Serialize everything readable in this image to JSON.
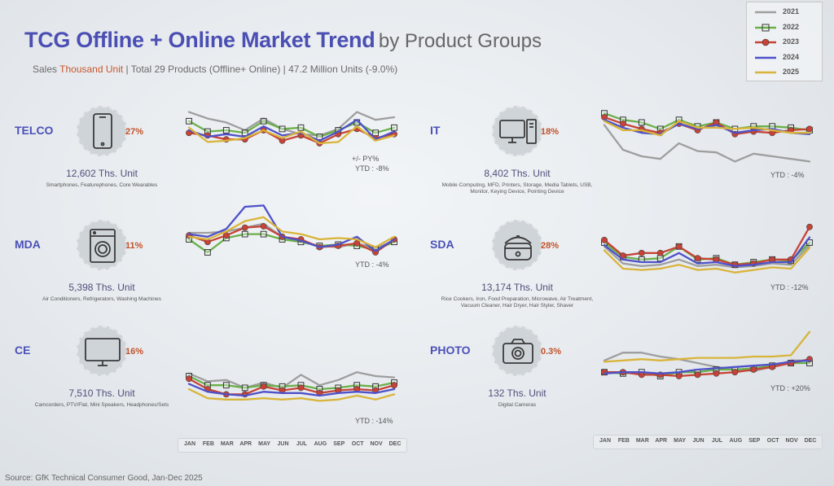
{
  "header": {
    "title_bold": "TCG Offline + Online Market Trend",
    "title_light": "by Product Groups",
    "subtitle_pre": "Sales",
    "subtitle_unit": "Thousand Unit",
    "subtitle_post": "| Total 29 Products (Offline+ Online) |   47.2 Million Units (-9.0%)"
  },
  "legend": [
    {
      "label": "2021",
      "color": "#9e9e9e",
      "marker": "none"
    },
    {
      "label": "2022",
      "color": "#6bb04a",
      "marker": "square"
    },
    {
      "label": "2023",
      "color": "#c84236",
      "marker": "circle"
    },
    {
      "label": "2024",
      "color": "#4e51c9",
      "marker": "none"
    },
    {
      "label": "2025",
      "color": "#d9b43a",
      "marker": "none"
    }
  ],
  "months": [
    "JAN",
    "FEB",
    "MAR",
    "APR",
    "MAY",
    "JUN",
    "JUL",
    "AUG",
    "SEP",
    "OCT",
    "NOV",
    "DEC"
  ],
  "groups": [
    {
      "key": "telco",
      "name": "TELCO",
      "share": "27%",
      "units": "12,602 Ths. Unit",
      "desc": "Smartphones, Featurephones, Core Wearables",
      "icon": "smartphone-icon"
    },
    {
      "key": "mda",
      "name": "MDA",
      "share": "11%",
      "units": "5,398 Ths. Unit",
      "desc": "Air Conditioners, Refrigerators, Washing Machines",
      "icon": "washing-machine-icon"
    },
    {
      "key": "ce",
      "name": "CE",
      "share": "16%",
      "units": "7,510 Ths. Unit",
      "desc": "Camcorders, PTV/Flat, Mini Speakers, Headphones/Sets",
      "icon": "tv-icon"
    },
    {
      "key": "it",
      "name": "IT",
      "share": "18%",
      "units": "8,402 Ths. Unit",
      "desc": "Mobile Computing, MFD, Printers, Storage, Media Tablets, USB, Monitor, Keying Device, Pointing Device",
      "icon": "desktop-computer-icon"
    },
    {
      "key": "sda",
      "name": "SDA",
      "share": "28%",
      "units": "13,174 Ths. Unit",
      "desc": "Rice Cookers, Iron, Food Preparation, Microwave, Air Treatment, Vacuum Cleaner, Hair Dryer, Hair Styler, Shaver",
      "icon": "rice-cooker-icon"
    },
    {
      "key": "photo",
      "name": "PHOTO",
      "share": "0.3%",
      "units": "132 Ths. Unit",
      "desc": "Digital Cameras",
      "icon": "camera-icon"
    }
  ],
  "chart_data": [
    {
      "type": "line",
      "group": "TELCO",
      "categories": [
        "JAN",
        "FEB",
        "MAR",
        "APR",
        "MAY",
        "JUN",
        "JUL",
        "AUG",
        "SEP",
        "OCT",
        "NOV",
        "DEC"
      ],
      "ylim": [
        0,
        100
      ],
      "ytd_label": "YTD : -8%",
      "annotation": "+/- PY%",
      "series": [
        {
          "name": "2021",
          "values": [
            98,
            88,
            82,
            70,
            88,
            72,
            64,
            62,
            72,
            98,
            86,
            90
          ]
        },
        {
          "name": "2022",
          "values": [
            84,
            68,
            70,
            66,
            84,
            72,
            74,
            60,
            70,
            82,
            66,
            74
          ]
        },
        {
          "name": "2023",
          "values": [
            66,
            62,
            56,
            56,
            70,
            54,
            62,
            50,
            64,
            72,
            58,
            64
          ]
        },
        {
          "name": "2024",
          "values": [
            70,
            60,
            64,
            60,
            76,
            62,
            66,
            54,
            68,
            86,
            56,
            68
          ]
        },
        {
          "name": "2025",
          "values": [
            74,
            52,
            54,
            58,
            70,
            58,
            68,
            50,
            52,
            76,
            54,
            62
          ]
        }
      ]
    },
    {
      "type": "line",
      "group": "MDA",
      "categories": [
        "JAN",
        "FEB",
        "MAR",
        "APR",
        "MAY",
        "JUN",
        "JUL",
        "AUG",
        "SEP",
        "OCT",
        "NOV",
        "DEC"
      ],
      "ylim": [
        0,
        100
      ],
      "ytd_label": "YTD : -4%",
      "series": [
        {
          "name": "2021",
          "values": [
            50,
            50,
            52,
            58,
            64,
            44,
            36,
            30,
            28,
            34,
            26,
            38
          ]
        },
        {
          "name": "2022",
          "values": [
            40,
            20,
            42,
            48,
            48,
            40,
            36,
            30,
            32,
            30,
            24,
            36
          ]
        },
        {
          "name": "2023",
          "values": [
            46,
            36,
            46,
            58,
            60,
            44,
            40,
            28,
            30,
            34,
            20,
            40
          ]
        },
        {
          "name": "2024",
          "values": [
            48,
            44,
            56,
            90,
            92,
            44,
            38,
            28,
            32,
            44,
            22,
            40
          ]
        },
        {
          "name": "2025",
          "values": [
            44,
            40,
            52,
            68,
            74,
            52,
            48,
            40,
            42,
            40,
            28,
            44
          ]
        }
      ]
    },
    {
      "type": "line",
      "group": "CE",
      "categories": [
        "JAN",
        "FEB",
        "MAR",
        "APR",
        "MAY",
        "JUN",
        "JUL",
        "AUG",
        "SEP",
        "OCT",
        "NOV",
        "DEC"
      ],
      "ylim": [
        0,
        100
      ],
      "ytd_label": "YTD : -14%",
      "series": [
        {
          "name": "2021",
          "values": [
            74,
            62,
            64,
            52,
            60,
            52,
            72,
            56,
            64,
            76,
            70,
            68
          ]
        },
        {
          "name": "2022",
          "values": [
            70,
            56,
            56,
            52,
            56,
            54,
            56,
            50,
            52,
            56,
            54,
            60
          ]
        },
        {
          "name": "2023",
          "values": [
            66,
            50,
            42,
            42,
            54,
            48,
            52,
            44,
            48,
            50,
            48,
            56
          ]
        },
        {
          "name": "2024",
          "values": [
            58,
            46,
            42,
            40,
            46,
            44,
            44,
            40,
            44,
            46,
            44,
            50
          ]
        },
        {
          "name": "2025",
          "values": [
            50,
            36,
            34,
            34,
            36,
            34,
            36,
            32,
            34,
            40,
            34,
            42
          ]
        }
      ]
    },
    {
      "type": "line",
      "group": "IT",
      "categories": [
        "JAN",
        "FEB",
        "MAR",
        "APR",
        "MAY",
        "JUN",
        "JUL",
        "AUG",
        "SEP",
        "OCT",
        "NOV",
        "DEC"
      ],
      "ylim": [
        0,
        100
      ],
      "ytd_label": "YTD : -4%",
      "series": [
        {
          "name": "2021",
          "values": [
            78,
            40,
            30,
            26,
            50,
            38,
            36,
            22,
            34,
            30,
            26,
            22
          ]
        },
        {
          "name": "2022",
          "values": [
            96,
            86,
            82,
            72,
            86,
            76,
            82,
            72,
            76,
            76,
            74,
            70
          ]
        },
        {
          "name": "2023",
          "values": [
            90,
            80,
            72,
            66,
            80,
            70,
            82,
            64,
            68,
            66,
            70,
            72
          ]
        },
        {
          "name": "2024",
          "values": [
            86,
            74,
            66,
            64,
            80,
            72,
            78,
            66,
            70,
            72,
            66,
            64
          ]
        },
        {
          "name": "2025",
          "values": [
            84,
            70,
            70,
            62,
            84,
            74,
            74,
            72,
            74,
            70,
            66,
            66
          ]
        }
      ]
    },
    {
      "type": "line",
      "group": "SDA",
      "categories": [
        "JAN",
        "FEB",
        "MAR",
        "APR",
        "MAY",
        "JUN",
        "JUL",
        "AUG",
        "SEP",
        "OCT",
        "NOV",
        "DEC"
      ],
      "ylim": [
        0,
        100
      ],
      "ytd_label": "YTD : -12%",
      "series": [
        {
          "name": "2021",
          "values": [
            64,
            38,
            34,
            36,
            44,
            34,
            36,
            32,
            34,
            38,
            36,
            66
          ]
        },
        {
          "name": "2022",
          "values": [
            70,
            48,
            44,
            46,
            64,
            44,
            46,
            36,
            40,
            44,
            42,
            70
          ]
        },
        {
          "name": "2023",
          "values": [
            74,
            50,
            54,
            54,
            64,
            46,
            44,
            36,
            38,
            44,
            44,
            94
          ]
        },
        {
          "name": "2024",
          "values": [
            66,
            44,
            40,
            40,
            54,
            38,
            40,
            34,
            36,
            40,
            40,
            78
          ]
        },
        {
          "name": "2025",
          "values": [
            58,
            30,
            28,
            30,
            36,
            28,
            30,
            24,
            28,
            32,
            30,
            62
          ]
        }
      ]
    },
    {
      "type": "line",
      "group": "PHOTO",
      "categories": [
        "JAN",
        "FEB",
        "MAR",
        "APR",
        "MAY",
        "JUN",
        "JUL",
        "AUG",
        "SEP",
        "OCT",
        "NOV",
        "DEC"
      ],
      "ylim": [
        0,
        100
      ],
      "ytd_label": "YTD : +20%",
      "series": [
        {
          "name": "2021",
          "values": [
            44,
            56,
            56,
            50,
            46,
            40,
            34,
            30,
            28,
            34,
            44,
            44
          ]
        },
        {
          "name": "2022",
          "values": [
            26,
            24,
            26,
            20,
            26,
            26,
            30,
            30,
            32,
            36,
            40,
            40
          ]
        },
        {
          "name": "2023",
          "values": [
            26,
            26,
            22,
            22,
            20,
            22,
            24,
            26,
            30,
            34,
            40,
            46
          ]
        },
        {
          "name": "2024",
          "values": [
            24,
            26,
            26,
            24,
            26,
            30,
            32,
            34,
            36,
            38,
            42,
            44
          ]
        },
        {
          "name": "2025",
          "values": [
            42,
            44,
            46,
            44,
            46,
            48,
            48,
            48,
            50,
            50,
            52,
            88
          ]
        }
      ]
    }
  ],
  "source": "Source: GfK Technical Consumer Good, Jan-Dec 2025"
}
